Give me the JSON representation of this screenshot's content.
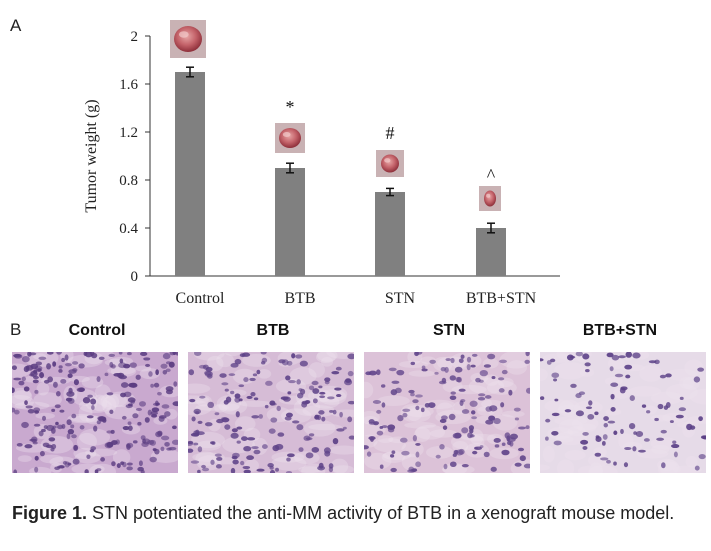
{
  "panels": {
    "a_label": "A",
    "b_label": "B"
  },
  "chart_data": {
    "type": "bar",
    "title": "",
    "xlabel": "",
    "ylabel": "Tumor weight (g)",
    "categories": [
      "Control",
      "BTB",
      "STN",
      "BTB+STN"
    ],
    "values": [
      1.7,
      0.9,
      0.7,
      0.4
    ],
    "errors": [
      0.04,
      0.04,
      0.03,
      0.04
    ],
    "significance": [
      "",
      "*",
      "#",
      "^"
    ],
    "ylim": [
      0,
      2
    ],
    "yticks": [
      "0",
      "0.4",
      "0.8",
      "1.2",
      "1.6",
      "2"
    ],
    "grid": false,
    "legend": "none",
    "bar_color": "#808080"
  },
  "histology": {
    "titles": [
      "Control",
      "BTB",
      "STN",
      "BTB+STN"
    ]
  },
  "caption": {
    "prefix": "Figure 1.",
    "text": " STN potentiated the anti-MM activity of BTB in a xenograft mouse model."
  }
}
